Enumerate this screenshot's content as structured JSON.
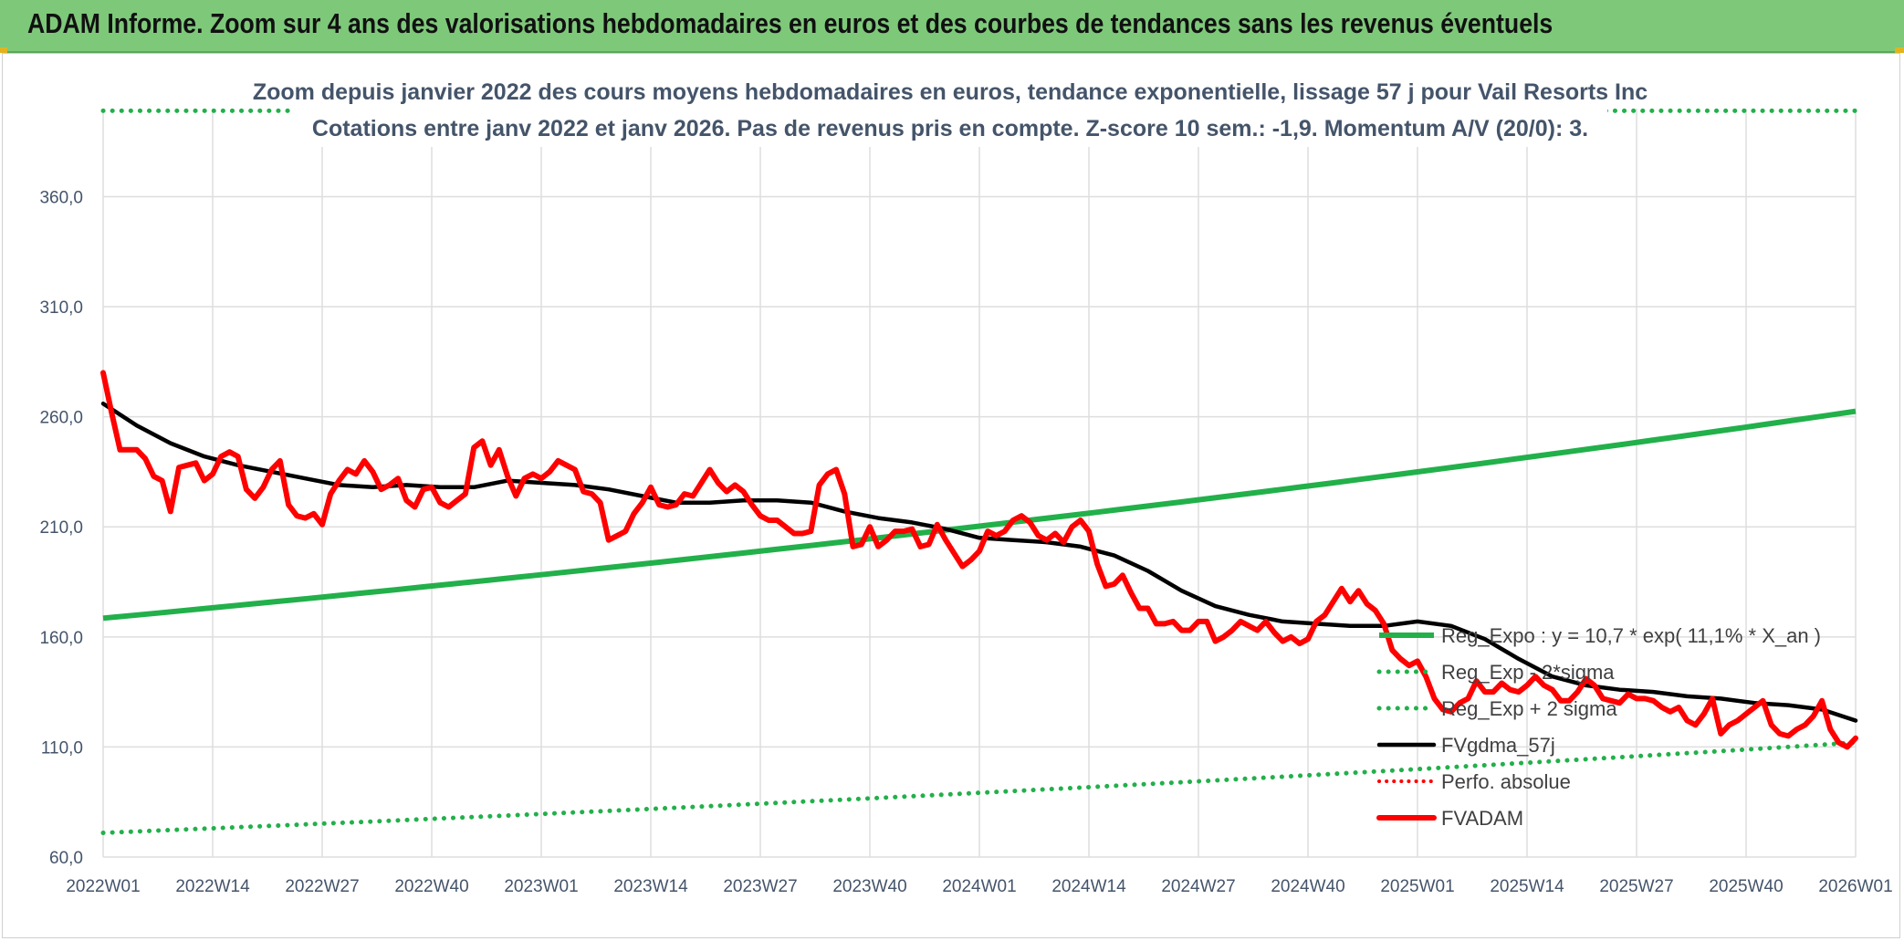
{
  "header": {
    "title": "ADAM Informe. Zoom sur 4 ans des valorisations hebdomadaires en euros et des courbes de tendances sans les revenus éventuels"
  },
  "colors": {
    "banner": "#7ec87a",
    "reg_expo": "#22b04a",
    "fvgdma": "#000000",
    "fvadam": "#ff0000",
    "perfo": "#ff0000",
    "grid": "#dedede",
    "text": "#44546a"
  },
  "chart_data": {
    "type": "line",
    "subtitle_line1": "Zoom depuis janvier 2022 des cours moyens hebdomadaires en euros, tendance exponentielle, lissage 57 j pour Vail Resorts Inc",
    "subtitle_line2": "Cotations entre janv 2022 et janv 2026. Pas de revenus pris en compte. Z-score 10 sem.: -1,9. Momentum A/V (20/0): 3.",
    "ylim": [
      60,
      400
    ],
    "yticks": [
      "60,0",
      "110,0",
      "160,0",
      "210,0",
      "260,0",
      "310,0",
      "360,0"
    ],
    "ytick_values": [
      60,
      110,
      160,
      210,
      260,
      310,
      360
    ],
    "xlim": [
      0,
      208
    ],
    "xticks": [
      "2022W01",
      "2022W14",
      "2022W27",
      "2022W40",
      "2023W01",
      "2023W14",
      "2023W27",
      "2023W40",
      "2024W01",
      "2024W14",
      "2024W27",
      "2024W40",
      "2025W01",
      "2025W14",
      "2025W27",
      "2025W40",
      "2026W01"
    ],
    "xtick_positions": [
      0,
      13,
      26,
      39,
      52,
      65,
      78,
      91,
      104,
      117,
      130,
      143,
      156,
      169,
      182,
      195,
      208
    ],
    "grid": true,
    "legend_position": "bottom-right",
    "series": [
      {
        "name": "Reg_Expo : y = 10,7 * exp( 11,1% *  X_an )",
        "style": "solid",
        "x": [
          0,
          208
        ],
        "values": [
          168.5,
          262.5
        ],
        "growth": "exponential"
      },
      {
        "name": "Reg_Exp - 2*sigma",
        "style": "dotted",
        "x": [
          0,
          208
        ],
        "values": [
          71,
          112
        ],
        "growth": "exponential"
      },
      {
        "name": "Reg_Exp + 2 sigma",
        "style": "dotted",
        "x": [
          0,
          208
        ],
        "values": [
          399,
          399
        ],
        "growth": "flat-clipped"
      },
      {
        "name": "FVgdma_57j",
        "style": "solid",
        "x": [
          0,
          4,
          8,
          12,
          16,
          20,
          24,
          28,
          32,
          36,
          40,
          44,
          48,
          52,
          56,
          60,
          64,
          68,
          72,
          76,
          80,
          84,
          88,
          92,
          96,
          100,
          104,
          108,
          112,
          116,
          120,
          124,
          128,
          132,
          136,
          140,
          144,
          148,
          152,
          156,
          160,
          164,
          168,
          172,
          176,
          180,
          184,
          188,
          192,
          196,
          200,
          204,
          208
        ],
        "values": [
          266,
          256,
          248,
          242,
          238,
          235,
          232,
          229,
          228,
          229,
          228,
          228,
          231,
          230,
          229,
          227,
          224,
          221,
          221,
          222,
          222,
          221,
          217,
          214,
          212,
          209,
          205,
          204,
          203,
          201,
          197,
          190,
          181,
          174,
          170,
          167,
          166,
          165,
          165,
          167,
          165,
          159,
          150,
          142,
          138,
          136,
          135,
          133,
          132,
          130,
          129,
          127,
          122
        ]
      },
      {
        "name": "Perfo. absolue",
        "style": "dotted",
        "x": [],
        "values": []
      },
      {
        "name": "FVADAM",
        "style": "solid-thick",
        "x": [
          0,
          1,
          2,
          3,
          4,
          5,
          6,
          7,
          8,
          9,
          10,
          11,
          12,
          13,
          14,
          15,
          16,
          17,
          18,
          19,
          20,
          21,
          22,
          23,
          24,
          25,
          26,
          27,
          28,
          29,
          30,
          31,
          32,
          33,
          34,
          35,
          36,
          37,
          38,
          39,
          40,
          41,
          42,
          43,
          44,
          45,
          46,
          47,
          48,
          49,
          50,
          51,
          52,
          53,
          54,
          55,
          56,
          57,
          58,
          59,
          60,
          61,
          62,
          63,
          64,
          65,
          66,
          67,
          68,
          69,
          70,
          71,
          72,
          73,
          74,
          75,
          76,
          77,
          78,
          79,
          80,
          81,
          82,
          83,
          84,
          85,
          86,
          87,
          88,
          89,
          90,
          91,
          92,
          93,
          94,
          95,
          96,
          97,
          98,
          99,
          100,
          101,
          102,
          103,
          104,
          105,
          106,
          107,
          108,
          109,
          110,
          111,
          112,
          113,
          114,
          115,
          116,
          117,
          118,
          119,
          120,
          121,
          122,
          123,
          124,
          125,
          126,
          127,
          128,
          129,
          130,
          131,
          132,
          133,
          134,
          135,
          136,
          137,
          138,
          139,
          140,
          141,
          142,
          143,
          144,
          145,
          146,
          147,
          148,
          149,
          150,
          151,
          152,
          153,
          154,
          155,
          156,
          157,
          158,
          159,
          160,
          161,
          162,
          163,
          164,
          165,
          166,
          167,
          168,
          169,
          170,
          171,
          172,
          173,
          174,
          175,
          176,
          177,
          178,
          179,
          180,
          181,
          182,
          183,
          184,
          185,
          186,
          187,
          188,
          189,
          190,
          191,
          192,
          193,
          194,
          195,
          196,
          197,
          198,
          199,
          200,
          201,
          202,
          203,
          204,
          205,
          206,
          207,
          208
        ],
        "values": [
          280,
          262,
          245,
          245,
          245,
          241,
          233,
          231,
          217,
          237,
          238,
          239,
          231,
          234,
          242,
          244,
          242,
          227,
          223,
          228,
          236,
          240,
          220,
          215,
          214,
          216,
          211,
          225,
          231,
          236,
          234,
          240,
          235,
          227,
          229,
          232,
          222,
          219,
          227,
          228,
          221,
          219,
          222,
          225,
          246,
          249,
          238,
          245,
          233,
          224,
          232,
          234,
          232,
          235,
          240,
          238,
          236,
          226,
          225,
          221,
          204,
          206,
          208,
          216,
          221,
          228,
          220,
          219,
          220,
          225,
          224,
          230,
          236,
          230,
          226,
          229,
          226,
          220,
          215,
          213,
          213,
          210,
          207,
          207,
          208,
          229,
          234,
          236,
          225,
          201,
          202,
          210,
          201,
          204,
          208,
          208,
          209,
          201,
          202,
          211,
          204,
          198,
          192,
          195,
          199,
          208,
          206,
          208,
          213,
          215,
          212,
          206,
          204,
          207,
          203,
          210,
          213,
          208,
          193,
          183,
          184,
          188,
          180,
          173,
          173,
          166,
          166,
          167,
          163,
          163,
          167,
          167,
          158,
          160,
          163,
          167,
          165,
          163,
          167,
          162,
          158,
          160,
          157,
          159,
          167,
          170,
          176,
          182,
          176,
          181,
          175,
          172,
          166,
          154,
          150,
          147,
          149,
          142,
          132,
          127,
          126,
          130,
          132,
          140,
          135,
          135,
          139,
          136,
          135,
          138,
          142,
          138,
          136,
          131,
          131,
          135,
          141,
          138,
          132,
          131,
          130,
          134,
          132,
          132,
          131,
          128,
          126,
          128,
          122,
          120,
          125,
          132,
          116,
          120,
          122,
          125,
          128,
          131,
          120,
          116,
          115,
          118,
          120,
          124,
          131,
          118,
          112,
          110,
          114
        ]
      }
    ]
  }
}
